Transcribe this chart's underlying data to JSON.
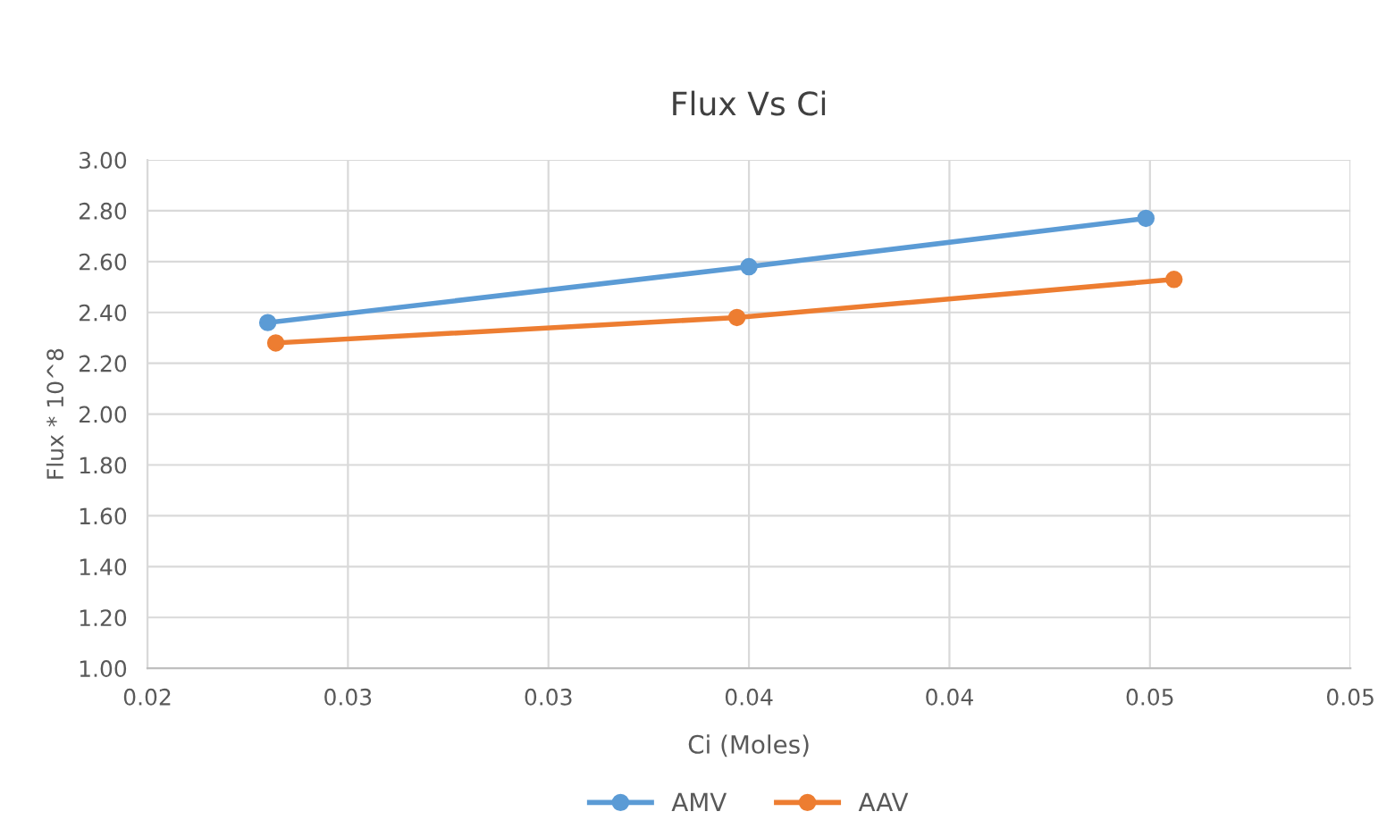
{
  "chart_data": {
    "type": "line",
    "title": "Flux Vs Ci",
    "xlabel": "Ci (Moles)",
    "ylabel": "Flux * 10^8",
    "series": [
      {
        "name": "AMV",
        "color": "#5b9bd5",
        "x": [
          0.023,
          0.035,
          0.0449
        ],
        "values": [
          2.36,
          2.58,
          2.77
        ]
      },
      {
        "name": "AAV",
        "color": "#ed7d31",
        "x": [
          0.0232,
          0.0347,
          0.0456
        ],
        "values": [
          2.28,
          2.38,
          2.53
        ]
      }
    ],
    "xlim": [
      0.02,
      0.05
    ],
    "ylim": [
      1.0,
      3.0
    ],
    "xticks": [
      {
        "value": 0.02,
        "label": "0.02"
      },
      {
        "value": 0.025,
        "label": "0.03"
      },
      {
        "value": 0.03,
        "label": "0.03"
      },
      {
        "value": 0.035,
        "label": "0.04"
      },
      {
        "value": 0.04,
        "label": "0.04"
      },
      {
        "value": 0.045,
        "label": "0.05"
      },
      {
        "value": 0.05,
        "label": "0.05"
      }
    ],
    "yticks": [
      {
        "value": 1.0,
        "label": "1.00"
      },
      {
        "value": 1.2,
        "label": "1.20"
      },
      {
        "value": 1.4,
        "label": "1.40"
      },
      {
        "value": 1.6,
        "label": "1.60"
      },
      {
        "value": 1.8,
        "label": "1.80"
      },
      {
        "value": 2.0,
        "label": "2.00"
      },
      {
        "value": 2.2,
        "label": "2.20"
      },
      {
        "value": 2.4,
        "label": "2.40"
      },
      {
        "value": 2.6,
        "label": "2.60"
      },
      {
        "value": 2.8,
        "label": "2.80"
      },
      {
        "value": 3.0,
        "label": "3.00"
      }
    ],
    "grid": true,
    "legend": "bottom",
    "marker": "circle",
    "line_style": "solid"
  }
}
